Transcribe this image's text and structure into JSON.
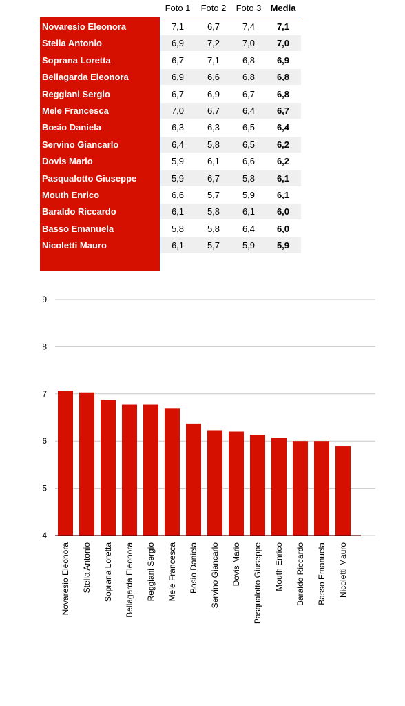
{
  "table": {
    "header": [
      "Foto 1",
      "Foto 2",
      "Foto 3",
      "Media"
    ],
    "rows": [
      [
        "Novaresio Eleonora",
        "7,1",
        "6,7",
        "7,4",
        "7,1"
      ],
      [
        "Stella Antonio",
        "6,9",
        "7,2",
        "7,0",
        "7,0"
      ],
      [
        "Soprana Loretta",
        "6,7",
        "7,1",
        "6,8",
        "6,9"
      ],
      [
        "Bellagarda Eleonora",
        "6,9",
        "6,6",
        "6,8",
        "6,8"
      ],
      [
        "Reggiani Sergio",
        "6,7",
        "6,9",
        "6,7",
        "6,8"
      ],
      [
        "Mele Francesca",
        "7,0",
        "6,7",
        "6,4",
        "6,7"
      ],
      [
        "Bosio Daniela",
        "6,3",
        "6,3",
        "6,5",
        "6,4"
      ],
      [
        "Servino Giancarlo",
        "6,4",
        "5,8",
        "6,5",
        "6,2"
      ],
      [
        "Dovis Mario",
        "5,9",
        "6,1",
        "6,6",
        "6,2"
      ],
      [
        "Pasqualotto Giuseppe",
        "5,9",
        "6,7",
        "5,8",
        "6,1"
      ],
      [
        "Mouth Enrico",
        "6,6",
        "5,7",
        "5,9",
        "6,1"
      ],
      [
        "Baraldo Riccardo",
        "6,1",
        "5,8",
        "6,1",
        "6,0"
      ],
      [
        "Basso Emanuela",
        "5,8",
        "5,8",
        "6,4",
        "6,0"
      ],
      [
        "Nicoletti Mauro",
        "6,1",
        "5,7",
        "5,9",
        "5,9"
      ]
    ]
  },
  "chart_data": {
    "type": "bar",
    "categories": [
      "Novaresio Eleonora",
      "Stella Antonio",
      "Soprana Loretta",
      "Bellagarda Eleonora",
      "Reggiani Sergio",
      "Mele Francesca",
      "Bosio Daniela",
      "Servino Giancarlo",
      "Dovis Mario",
      "Pasqualotto Giuseppe",
      "Mouth Enrico",
      "Baraldo Riccardo",
      "Basso Emanuela",
      "Nicoletti Mauro"
    ],
    "values": [
      7.07,
      7.03,
      6.87,
      6.77,
      6.77,
      6.7,
      6.37,
      6.23,
      6.2,
      6.13,
      6.07,
      6.0,
      6.0,
      5.9
    ],
    "color": "#d61000",
    "ylim": [
      4,
      9
    ],
    "yticks": [
      4,
      5,
      6,
      7,
      8,
      9
    ],
    "grid": true
  }
}
